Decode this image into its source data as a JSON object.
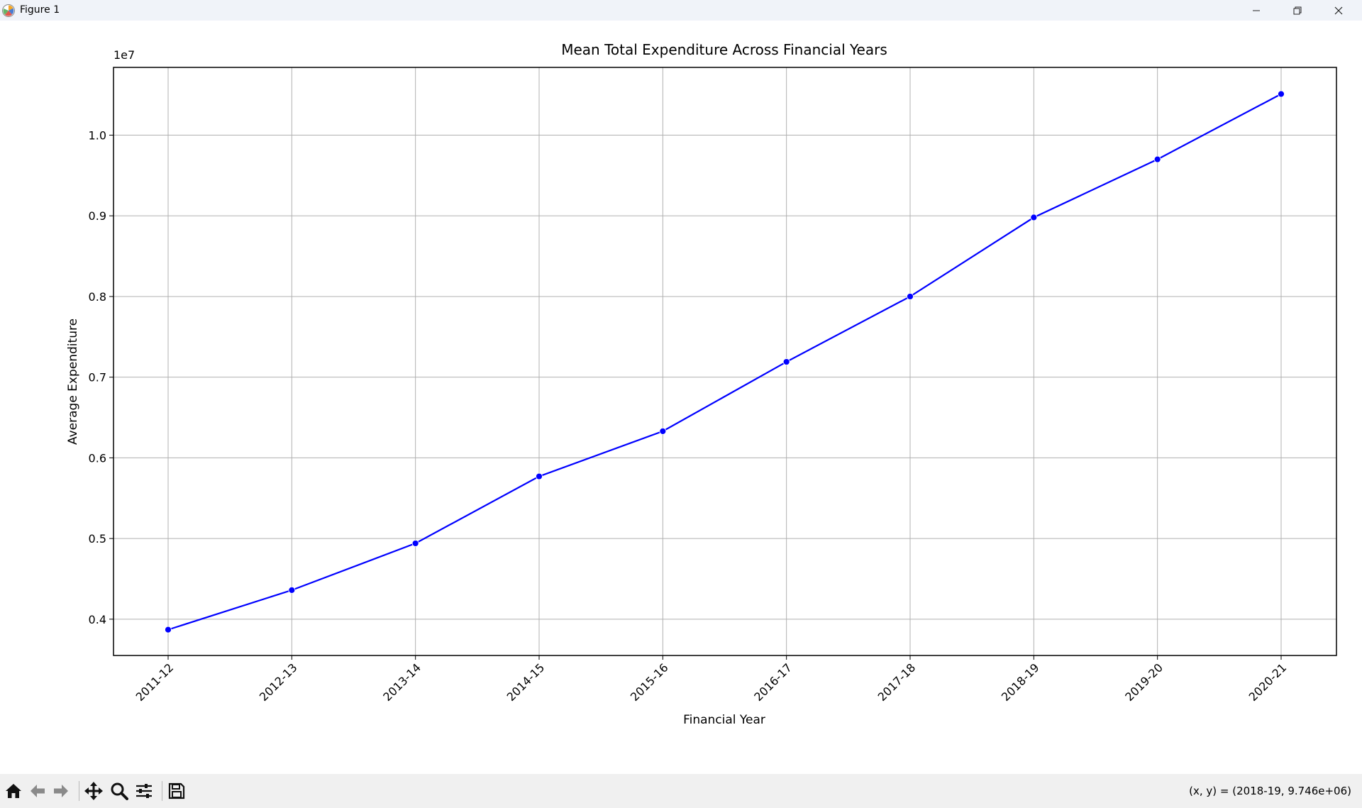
{
  "window": {
    "title": "Figure 1",
    "icons": [
      "matplotlib-logo-icon",
      "minimize-icon",
      "restore-icon",
      "close-icon"
    ]
  },
  "toolbar": {
    "buttons": [
      "home-icon",
      "back-icon",
      "forward-icon",
      "pan-icon",
      "zoom-icon",
      "configure-subplots-icon",
      "save-icon"
    ],
    "coordinates": "(x, y) = (2018-19, 9.746e+06)"
  },
  "chart_data": {
    "type": "line",
    "title": "Mean Total Expenditure Across Financial Years",
    "xlabel": "Financial Year",
    "ylabel": "Average Expenditure",
    "offset_label": "1e7",
    "categories": [
      "2011-12",
      "2012-13",
      "2013-14",
      "2014-15",
      "2015-16",
      "2016-17",
      "2017-18",
      "2018-19",
      "2019-20",
      "2020-21"
    ],
    "series": [
      {
        "values": [
          3870000,
          4360000,
          4940000,
          5770000,
          6330000,
          7190000,
          8000000,
          8980000,
          9700000,
          10510000
        ]
      }
    ],
    "yticks": [
      4000000,
      5000000,
      6000000,
      7000000,
      8000000,
      9000000,
      10000000
    ],
    "ytick_labels": [
      "0.4",
      "0.5",
      "0.6",
      "0.7",
      "0.8",
      "0.9",
      "1.0"
    ],
    "ylim": [
      3550000,
      10840000
    ],
    "grid": true,
    "line_color": "#0000ff",
    "marker": "circle"
  }
}
